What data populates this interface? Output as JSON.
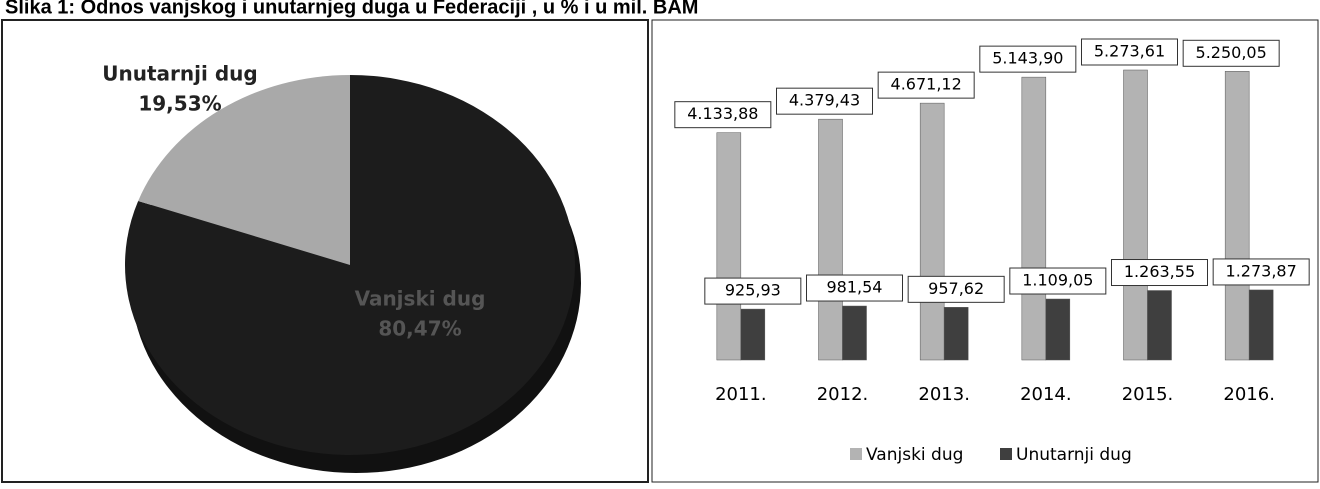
{
  "title": "Slika 1: Odnos vanjskog i unutarnjeg duga u Federaciji , u % i u mil. BAM",
  "chart_data": [
    {
      "type": "pie",
      "categories": [
        "Vanjski dug",
        "Unutarnji dug"
      ],
      "values": [
        80.47,
        19.53
      ],
      "value_labels": [
        "80,47%",
        "19,53%"
      ],
      "colors": [
        "#1c1c1c",
        "#a9a9a9"
      ]
    },
    {
      "type": "bar",
      "categories": [
        "2011.",
        "2012.",
        "2013.",
        "2014.",
        "2015.",
        "2016."
      ],
      "series": [
        {
          "name": "Vanjski dug",
          "color": "#b3b3b3",
          "values": [
            4133.88,
            4379.43,
            4671.12,
            5143.9,
            5273.61,
            5250.05
          ],
          "value_labels": [
            "4.133,88",
            "4.379,43",
            "4.671,12",
            "5.143,90",
            "5.273,61",
            "5.250,05"
          ]
        },
        {
          "name": "Unutarnji dug",
          "color": "#3f3f3f",
          "values": [
            925.93,
            981.54,
            957.62,
            1109.05,
            1263.55,
            1273.87
          ],
          "value_labels": [
            "925,93",
            "981,54",
            "957,62",
            "1.109,05",
            "1.263,55",
            "1.273,87"
          ]
        }
      ],
      "legend": "bottom"
    }
  ]
}
